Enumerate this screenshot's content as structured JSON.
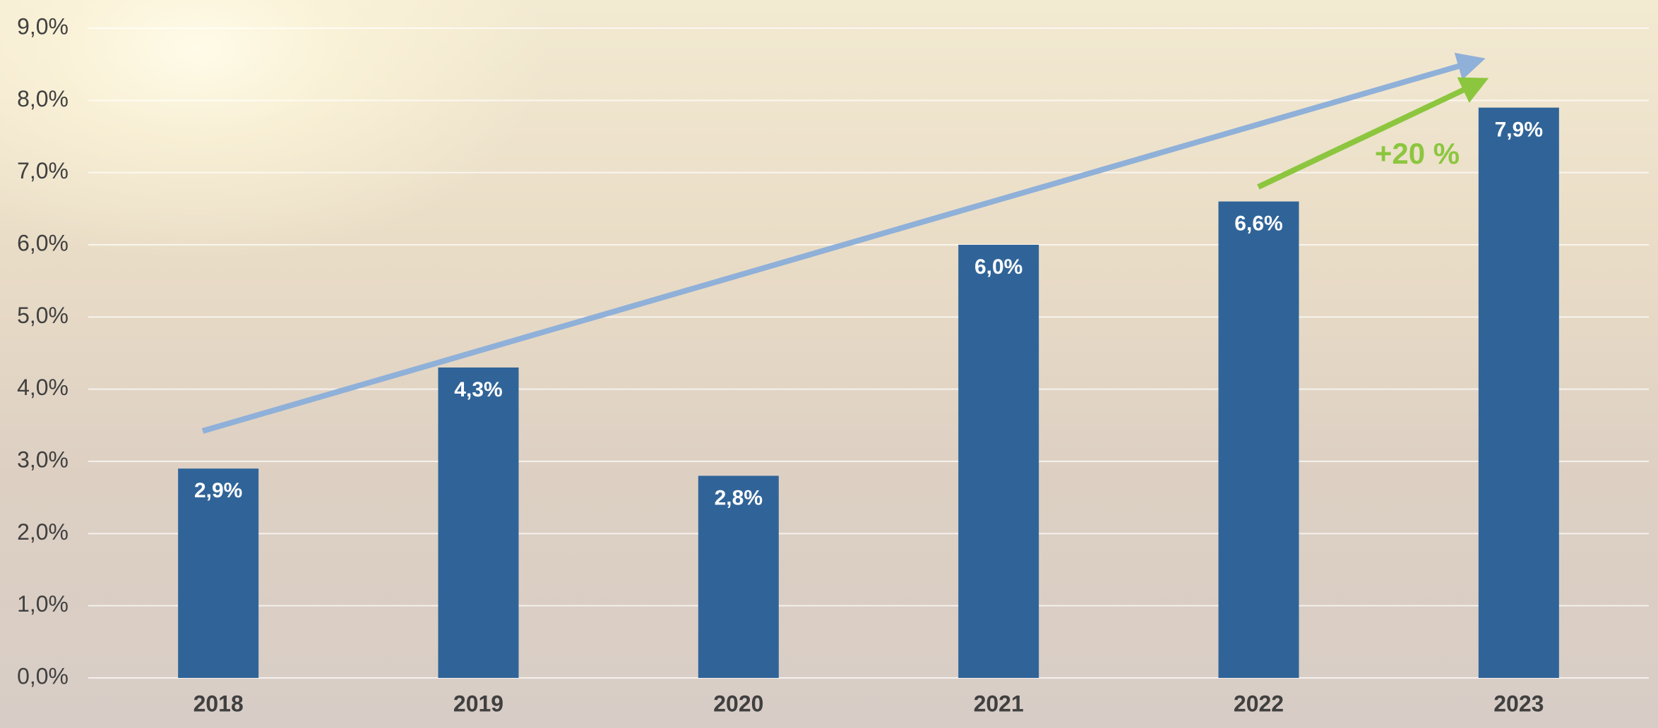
{
  "chart_data": {
    "type": "bar",
    "categories": [
      "2018",
      "2019",
      "2020",
      "2021",
      "2022",
      "2023"
    ],
    "values": [
      2.9,
      4.3,
      2.8,
      6.0,
      6.6,
      7.9
    ],
    "value_labels": [
      "2,9%",
      "4,3%",
      "2,8%",
      "6,0%",
      "6,6%",
      "7,9%"
    ],
    "color": "#306498",
    "ylim": [
      0,
      9
    ],
    "yticks": [
      {
        "value": 0,
        "label": "0,0%"
      },
      {
        "value": 1,
        "label": "1,0%"
      },
      {
        "value": 2,
        "label": "2,0%"
      },
      {
        "value": 3,
        "label": "3,0%"
      },
      {
        "value": 4,
        "label": "4,0%"
      },
      {
        "value": 5,
        "label": "5,0%"
      },
      {
        "value": 6,
        "label": "6,0%"
      },
      {
        "value": 7,
        "label": "7,0%"
      },
      {
        "value": 8,
        "label": "8,0%"
      },
      {
        "value": 9,
        "label": "9,0%"
      }
    ],
    "grid": true,
    "annotation": "+20 %"
  }
}
